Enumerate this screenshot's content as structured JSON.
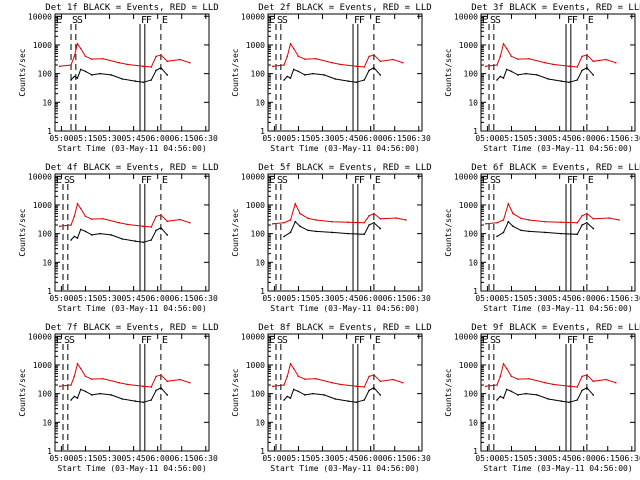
{
  "figure": {
    "shared": {
      "xlabel": "Start Time (03-May-11 04:56:00)",
      "ylabel": "Counts/sec",
      "x_ticks": [
        "05:00",
        "05:15",
        "05:30",
        "05:45",
        "06:00",
        "06:15",
        "06:30"
      ],
      "y_ticks": [
        "1",
        "10",
        "100",
        "1000",
        "10000"
      ],
      "y_scale": "log",
      "ylim": [
        1,
        12000
      ],
      "xlim_minutes_after_05_00": [
        0,
        96
      ],
      "series_colors": {
        "events": "#000000",
        "lld": "#e00000"
      }
    }
  },
  "chart_data": [
    {
      "type": "line",
      "title": "Det 1f BLACK = Events, RED = LLD",
      "markers": {
        "letters": [
          "E",
          "S",
          "S",
          "F",
          "F",
          "E"
        ],
        "minutes": [
          0,
          10,
          13,
          53,
          56,
          66
        ]
      },
      "series": [
        {
          "name": "LLD",
          "color": "#e00000",
          "x": [
            3,
            10,
            12,
            14,
            16,
            19,
            23,
            30,
            40,
            45,
            55,
            60,
            63,
            66,
            70,
            78,
            84
          ],
          "y": [
            180,
            200,
            400,
            1100,
            750,
            400,
            320,
            330,
            240,
            210,
            180,
            170,
            400,
            450,
            270,
            310,
            240
          ]
        },
        {
          "name": "Events",
          "color": "#000000",
          "x": [
            10,
            12,
            14,
            16,
            19,
            23,
            28,
            35,
            42,
            50,
            55,
            60,
            63,
            66,
            70
          ],
          "y": [
            60,
            80,
            70,
            140,
            120,
            90,
            100,
            90,
            65,
            55,
            50,
            60,
            130,
            160,
            90
          ]
        }
      ]
    },
    {
      "type": "line",
      "title": "Det 2f BLACK = Events, RED = LLD",
      "markers": {
        "letters": [
          "E",
          "S",
          "S",
          "F",
          "F",
          "E"
        ],
        "minutes": [
          0,
          5,
          8,
          53,
          56,
          66
        ]
      },
      "series": [
        {
          "name": "LLD",
          "color": "#e00000",
          "x": [
            3,
            10,
            12,
            14,
            16,
            19,
            23,
            30,
            40,
            45,
            55,
            60,
            63,
            66,
            70,
            78,
            84
          ],
          "y": [
            180,
            200,
            400,
            1100,
            750,
            400,
            320,
            330,
            240,
            210,
            180,
            170,
            400,
            450,
            270,
            310,
            240
          ]
        },
        {
          "name": "Events",
          "color": "#000000",
          "x": [
            10,
            12,
            14,
            16,
            19,
            23,
            28,
            35,
            42,
            50,
            55,
            60,
            63,
            66,
            70
          ],
          "y": [
            60,
            80,
            70,
            140,
            120,
            90,
            100,
            90,
            65,
            55,
            50,
            60,
            130,
            160,
            90
          ]
        }
      ]
    },
    {
      "type": "line",
      "title": "Det 3f BLACK = Events, RED = LLD",
      "markers": {
        "letters": [
          "E",
          "S",
          "S",
          "F",
          "F",
          "E"
        ],
        "minutes": [
          0,
          5,
          8,
          53,
          56,
          66
        ]
      },
      "series": [
        {
          "name": "LLD",
          "color": "#e00000",
          "x": [
            3,
            10,
            12,
            14,
            16,
            19,
            23,
            30,
            40,
            45,
            55,
            60,
            63,
            66,
            70,
            78,
            84
          ],
          "y": [
            180,
            200,
            400,
            1100,
            750,
            400,
            320,
            330,
            240,
            210,
            180,
            170,
            400,
            450,
            270,
            310,
            240
          ]
        },
        {
          "name": "Events",
          "color": "#000000",
          "x": [
            10,
            12,
            14,
            16,
            19,
            23,
            28,
            35,
            42,
            50,
            55,
            60,
            63,
            66,
            70
          ],
          "y": [
            60,
            80,
            70,
            140,
            120,
            90,
            100,
            90,
            65,
            55,
            50,
            60,
            130,
            160,
            90
          ]
        }
      ]
    },
    {
      "type": "line",
      "title": "Det 4f BLACK = Events, RED = LLD",
      "markers": {
        "letters": [
          "E",
          "S",
          "S",
          "F",
          "F",
          "E"
        ],
        "minutes": [
          0,
          5,
          8,
          53,
          56,
          66
        ]
      },
      "series": [
        {
          "name": "LLD",
          "color": "#e00000",
          "x": [
            3,
            10,
            12,
            14,
            16,
            19,
            23,
            30,
            40,
            45,
            55,
            60,
            63,
            66,
            70,
            78,
            84
          ],
          "y": [
            180,
            200,
            400,
            1100,
            750,
            400,
            320,
            330,
            240,
            210,
            180,
            170,
            400,
            450,
            270,
            310,
            240
          ]
        },
        {
          "name": "Events",
          "color": "#000000",
          "x": [
            10,
            12,
            14,
            16,
            19,
            23,
            28,
            35,
            42,
            50,
            55,
            60,
            63,
            66,
            70
          ],
          "y": [
            60,
            80,
            70,
            140,
            120,
            90,
            100,
            90,
            65,
            55,
            50,
            60,
            130,
            160,
            90
          ]
        }
      ]
    },
    {
      "type": "line",
      "title": "Det 5f BLACK = Events, RED = LLD",
      "markers": {
        "letters": [
          "E",
          "S",
          "S",
          "F",
          "F",
          "E"
        ],
        "minutes": [
          0,
          5,
          8,
          53,
          56,
          66
        ]
      },
      "series": [
        {
          "name": "LLD",
          "color": "#e00000",
          "x": [
            3,
            10,
            14,
            17,
            20,
            25,
            30,
            40,
            50,
            60,
            63,
            66,
            70,
            80,
            86
          ],
          "y": [
            220,
            240,
            300,
            1100,
            500,
            340,
            300,
            260,
            250,
            240,
            420,
            500,
            330,
            350,
            300
          ]
        },
        {
          "name": "Events",
          "color": "#000000",
          "x": [
            10,
            14,
            17,
            20,
            25,
            30,
            40,
            50,
            60,
            63,
            66,
            70
          ],
          "y": [
            80,
            110,
            260,
            180,
            130,
            120,
            110,
            100,
            95,
            200,
            240,
            150
          ]
        }
      ]
    },
    {
      "type": "line",
      "title": "Det 6f BLACK = Events, RED = LLD",
      "markers": {
        "letters": [
          "E",
          "S",
          "S",
          "F",
          "F",
          "E"
        ],
        "minutes": [
          0,
          5,
          8,
          53,
          56,
          66
        ]
      },
      "series": [
        {
          "name": "LLD",
          "color": "#e00000",
          "x": [
            3,
            10,
            14,
            17,
            20,
            25,
            30,
            40,
            50,
            60,
            63,
            66,
            70,
            80,
            86
          ],
          "y": [
            220,
            240,
            300,
            1100,
            500,
            340,
            300,
            260,
            250,
            240,
            420,
            500,
            330,
            350,
            300
          ]
        },
        {
          "name": "Events",
          "color": "#000000",
          "x": [
            10,
            14,
            17,
            20,
            25,
            30,
            40,
            50,
            60,
            63,
            66,
            70
          ],
          "y": [
            80,
            110,
            260,
            180,
            130,
            120,
            110,
            100,
            95,
            200,
            240,
            150
          ]
        }
      ]
    },
    {
      "type": "line",
      "title": "Det 7f BLACK = Events, RED = LLD",
      "markers": {
        "letters": [
          "E",
          "S",
          "S",
          "F",
          "F",
          "E"
        ],
        "minutes": [
          0,
          5,
          8,
          53,
          56,
          66
        ]
      },
      "series": [
        {
          "name": "LLD",
          "color": "#e00000",
          "x": [
            3,
            10,
            12,
            14,
            16,
            19,
            23,
            30,
            40,
            45,
            55,
            60,
            63,
            66,
            70,
            78,
            84
          ],
          "y": [
            180,
            200,
            400,
            1100,
            750,
            400,
            320,
            330,
            240,
            210,
            180,
            170,
            400,
            450,
            270,
            310,
            240
          ]
        },
        {
          "name": "Events",
          "color": "#000000",
          "x": [
            10,
            12,
            14,
            16,
            19,
            23,
            28,
            35,
            42,
            50,
            55,
            60,
            63,
            66,
            70
          ],
          "y": [
            60,
            80,
            70,
            140,
            120,
            90,
            100,
            90,
            65,
            55,
            50,
            60,
            130,
            160,
            90
          ]
        }
      ]
    },
    {
      "type": "line",
      "title": "Det 8f BLACK = Events, RED = LLD",
      "markers": {
        "letters": [
          "E",
          "S",
          "S",
          "F",
          "F",
          "E"
        ],
        "minutes": [
          0,
          5,
          8,
          53,
          56,
          66
        ]
      },
      "series": [
        {
          "name": "LLD",
          "color": "#e00000",
          "x": [
            3,
            10,
            12,
            14,
            16,
            19,
            23,
            30,
            40,
            45,
            55,
            60,
            63,
            66,
            70,
            78,
            84
          ],
          "y": [
            180,
            200,
            400,
            1100,
            750,
            400,
            320,
            330,
            240,
            210,
            180,
            170,
            400,
            450,
            270,
            310,
            240
          ]
        },
        {
          "name": "Events",
          "color": "#000000",
          "x": [
            10,
            12,
            14,
            16,
            19,
            23,
            28,
            35,
            42,
            50,
            55,
            60,
            63,
            66,
            70
          ],
          "y": [
            60,
            80,
            70,
            140,
            120,
            90,
            100,
            90,
            65,
            55,
            50,
            60,
            130,
            160,
            90
          ]
        }
      ]
    },
    {
      "type": "line",
      "title": "Det 9f BLACK = Events, RED = LLD",
      "markers": {
        "letters": [
          "E",
          "S",
          "S",
          "F",
          "F",
          "E"
        ],
        "minutes": [
          0,
          5,
          8,
          53,
          56,
          66
        ]
      },
      "series": [
        {
          "name": "LLD",
          "color": "#e00000",
          "x": [
            3,
            10,
            12,
            14,
            16,
            19,
            23,
            30,
            40,
            45,
            55,
            60,
            63,
            66,
            70,
            78,
            84
          ],
          "y": [
            180,
            200,
            400,
            1100,
            750,
            400,
            320,
            330,
            240,
            210,
            180,
            170,
            400,
            450,
            270,
            310,
            240
          ]
        },
        {
          "name": "Events",
          "color": "#000000",
          "x": [
            10,
            12,
            14,
            16,
            19,
            23,
            28,
            35,
            42,
            50,
            55,
            60,
            63,
            66,
            70
          ],
          "y": [
            60,
            80,
            70,
            140,
            120,
            90,
            100,
            90,
            65,
            55,
            50,
            60,
            130,
            160,
            90
          ]
        }
      ]
    }
  ]
}
